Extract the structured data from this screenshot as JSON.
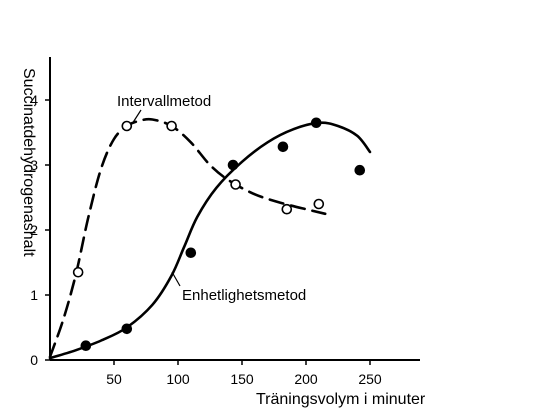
{
  "chart_data": {
    "type": "scatter",
    "title": "",
    "xlabel": "Träningsvolym i minuter",
    "ylabel": "Succinatdehydrogenashalt",
    "xlim": [
      0,
      300
    ],
    "ylim": [
      0,
      4.5
    ],
    "x_ticks": [
      50,
      100,
      150,
      200,
      250
    ],
    "y_ticks": [
      0,
      1,
      2,
      3,
      4
    ],
    "grid": false,
    "legend": "none",
    "series": [
      {
        "name": "Intervallmetod",
        "marker": "open-circle",
        "line_style": "dashed",
        "points": [
          {
            "x": 22,
            "y": 1.35
          },
          {
            "x": 60,
            "y": 3.6
          },
          {
            "x": 95,
            "y": 3.6
          },
          {
            "x": 145,
            "y": 2.7
          },
          {
            "x": 185,
            "y": 2.32
          },
          {
            "x": 210,
            "y": 2.4
          }
        ],
        "curve": [
          {
            "x": 0,
            "y": 0.05
          },
          {
            "x": 10,
            "y": 0.6
          },
          {
            "x": 20,
            "y": 1.3
          },
          {
            "x": 30,
            "y": 2.2
          },
          {
            "x": 40,
            "y": 2.95
          },
          {
            "x": 50,
            "y": 3.4
          },
          {
            "x": 60,
            "y": 3.6
          },
          {
            "x": 70,
            "y": 3.68
          },
          {
            "x": 80,
            "y": 3.7
          },
          {
            "x": 95,
            "y": 3.6
          },
          {
            "x": 110,
            "y": 3.35
          },
          {
            "x": 125,
            "y": 3.0
          },
          {
            "x": 140,
            "y": 2.76
          },
          {
            "x": 160,
            "y": 2.55
          },
          {
            "x": 180,
            "y": 2.42
          },
          {
            "x": 200,
            "y": 2.32
          },
          {
            "x": 215,
            "y": 2.25
          }
        ]
      },
      {
        "name": "Enhetlighetsmetod",
        "marker": "filled-circle",
        "line_style": "solid",
        "points": [
          {
            "x": 28,
            "y": 0.22
          },
          {
            "x": 60,
            "y": 0.48
          },
          {
            "x": 110,
            "y": 1.65
          },
          {
            "x": 143,
            "y": 3.0
          },
          {
            "x": 182,
            "y": 3.28
          },
          {
            "x": 208,
            "y": 3.65
          },
          {
            "x": 242,
            "y": 2.92
          }
        ],
        "curve": [
          {
            "x": 0,
            "y": 0.03
          },
          {
            "x": 20,
            "y": 0.15
          },
          {
            "x": 40,
            "y": 0.3
          },
          {
            "x": 60,
            "y": 0.5
          },
          {
            "x": 80,
            "y": 0.85
          },
          {
            "x": 95,
            "y": 1.3
          },
          {
            "x": 105,
            "y": 1.75
          },
          {
            "x": 115,
            "y": 2.2
          },
          {
            "x": 130,
            "y": 2.65
          },
          {
            "x": 150,
            "y": 3.05
          },
          {
            "x": 170,
            "y": 3.35
          },
          {
            "x": 190,
            "y": 3.55
          },
          {
            "x": 210,
            "y": 3.65
          },
          {
            "x": 225,
            "y": 3.6
          },
          {
            "x": 240,
            "y": 3.45
          },
          {
            "x": 250,
            "y": 3.2
          }
        ]
      }
    ]
  }
}
